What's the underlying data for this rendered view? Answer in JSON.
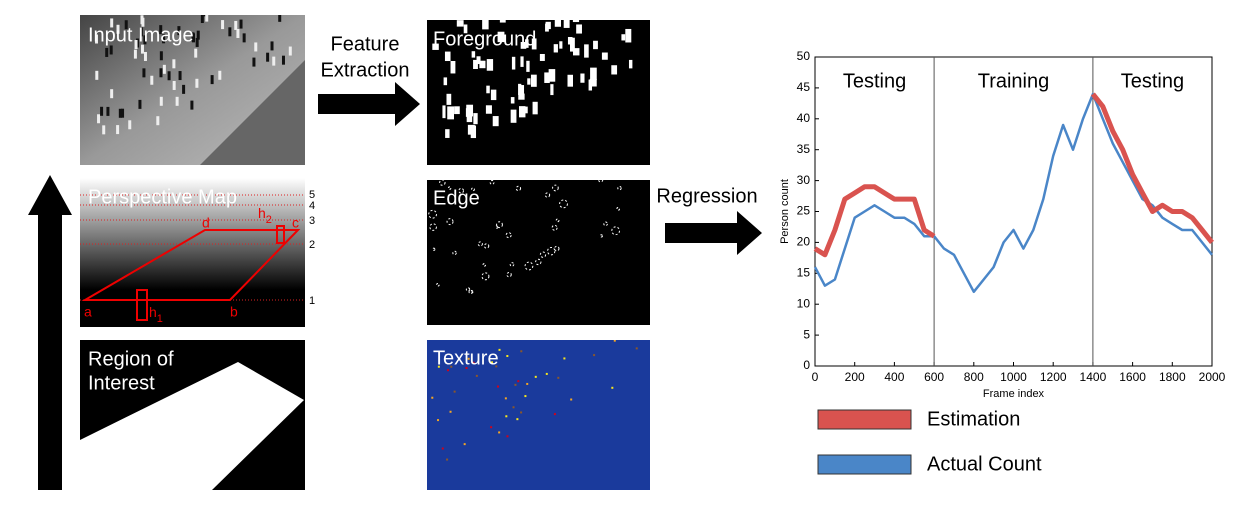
{
  "pipeline": {
    "input_image": "Input Image",
    "perspective_map": {
      "title": "Perspective Map",
      "points": [
        "a",
        "b",
        "c",
        "d"
      ],
      "heights": [
        {
          "text": "h",
          "sub": "1"
        },
        {
          "text": "h",
          "sub": "2"
        }
      ],
      "levels": [
        "1",
        "2",
        "3",
        "4",
        "5"
      ]
    },
    "region_of_interest": [
      "Region of",
      "Interest"
    ],
    "feature_extraction": [
      "Feature",
      "Extraction"
    ],
    "features": [
      "Foreground",
      "Edge",
      "Texture"
    ],
    "regression": "Regression"
  },
  "chart_data": {
    "type": "line",
    "x_label": "Frame index",
    "y_label": "Person count",
    "x": [
      0,
      50,
      100,
      150,
      200,
      250,
      300,
      350,
      400,
      450,
      500,
      550,
      600,
      650,
      700,
      750,
      800,
      850,
      900,
      950,
      1000,
      1050,
      1100,
      1150,
      1200,
      1250,
      1300,
      1350,
      1400,
      1450,
      1500,
      1550,
      1600,
      1650,
      1700,
      1750,
      1800,
      1850,
      1900,
      1950,
      2000
    ],
    "series": [
      {
        "name": "Estimation",
        "color": "#d9534f",
        "values": [
          19,
          18,
          22,
          27,
          28,
          29,
          29,
          28,
          27,
          27,
          27,
          22,
          21,
          null,
          null,
          null,
          null,
          null,
          null,
          null,
          null,
          null,
          null,
          null,
          null,
          null,
          null,
          null,
          44,
          42,
          38,
          35,
          31,
          28,
          25,
          26,
          25,
          25,
          24,
          22,
          20
        ]
      },
      {
        "name": "Actual Count",
        "color": "#4a86c8",
        "values": [
          16,
          13,
          14,
          19,
          24,
          25,
          26,
          25,
          24,
          24,
          23,
          21,
          21,
          19,
          18,
          15,
          12,
          14,
          16,
          20,
          22,
          19,
          22,
          27,
          34,
          39,
          35,
          40,
          44,
          40,
          36,
          33,
          30,
          27,
          26,
          24,
          23,
          22,
          22,
          20,
          18
        ]
      }
    ],
    "xlim": [
      0,
      2000
    ],
    "ylim": [
      0,
      50
    ],
    "xticks": [
      0,
      200,
      400,
      600,
      800,
      1000,
      1200,
      1400,
      1600,
      1800,
      2000
    ],
    "yticks": [
      0,
      5,
      10,
      15,
      20,
      25,
      30,
      35,
      40,
      45,
      50
    ],
    "vlines": [
      600,
      1400
    ],
    "annotations": [
      "Testing",
      "Training",
      "Testing"
    ]
  }
}
